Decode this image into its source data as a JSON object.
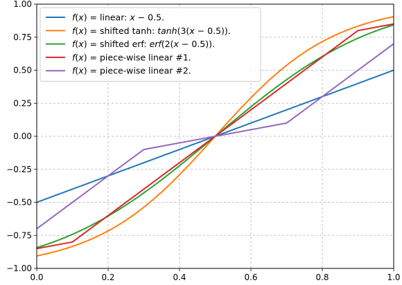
{
  "chart_data": {
    "type": "line",
    "xlim": [
      0.0,
      1.0
    ],
    "ylim": [
      -1.0,
      1.0
    ],
    "grid": true,
    "grid_style": "dashed",
    "legend_placement": "top-left",
    "x_ticks": [
      "0.0",
      "0.2",
      "0.4",
      "0.6",
      "0.8",
      "1.0"
    ],
    "y_ticks": [
      "1.00",
      "0.75",
      "0.50",
      "0.25",
      "0.00",
      "−0.25",
      "−0.50",
      "−0.75",
      "−1.00"
    ],
    "series": [
      {
        "name": "f(x) = linear: x − 0.5.",
        "legend": [
          {
            "t": "f",
            "i": true
          },
          {
            "t": "(",
            "i": false
          },
          {
            "t": "x",
            "i": true
          },
          {
            "t": ")  =  linear: ",
            "i": false
          },
          {
            "t": "x",
            "i": true
          },
          {
            "t": " − 0.5.",
            "i": false
          }
        ],
        "color": "#1f77b4",
        "kind": "func",
        "func": "linear"
      },
      {
        "name": "f(x) = shifted tanh: tanh(3(x − 0.5)).",
        "legend": [
          {
            "t": "f",
            "i": true
          },
          {
            "t": "(",
            "i": false
          },
          {
            "t": "x",
            "i": true
          },
          {
            "t": ")  =  shifted tanh: ",
            "i": false
          },
          {
            "t": "tanh",
            "i": true
          },
          {
            "t": "(3(",
            "i": false
          },
          {
            "t": "x",
            "i": true
          },
          {
            "t": " − 0.5)).",
            "i": false
          }
        ],
        "color": "#ff7f0e",
        "kind": "func",
        "func": "tanh3"
      },
      {
        "name": "f(x) = shifted erf: erf(2(x − 0.5)).",
        "legend": [
          {
            "t": "f",
            "i": true
          },
          {
            "t": "(",
            "i": false
          },
          {
            "t": "x",
            "i": true
          },
          {
            "t": ")  =  shifted erf: ",
            "i": false
          },
          {
            "t": "erf",
            "i": true
          },
          {
            "t": "(2(",
            "i": false
          },
          {
            "t": "x",
            "i": true
          },
          {
            "t": " − 0.5)).",
            "i": false
          }
        ],
        "color": "#2ca02c",
        "kind": "func",
        "func": "erf2"
      },
      {
        "name": "f(x) = piece-wise linear #1.",
        "legend": [
          {
            "t": "f",
            "i": true
          },
          {
            "t": "(",
            "i": false
          },
          {
            "t": "x",
            "i": true
          },
          {
            "t": ")  =  piece-wise linear #1.",
            "i": false
          }
        ],
        "color": "#d62728",
        "kind": "points",
        "x": [
          0.0,
          0.1,
          0.5,
          0.9,
          1.0
        ],
        "y": [
          -0.85,
          -0.8,
          0.0,
          0.8,
          0.85
        ]
      },
      {
        "name": "f(x) = piece-wise linear #2.",
        "legend": [
          {
            "t": "f",
            "i": true
          },
          {
            "t": "(",
            "i": false
          },
          {
            "t": "x",
            "i": true
          },
          {
            "t": ")  =  piece-wise linear #2.",
            "i": false
          }
        ],
        "color": "#9467bd",
        "kind": "points",
        "x": [
          0.0,
          0.3,
          0.5,
          0.7,
          1.0
        ],
        "y": [
          -0.7,
          -0.1,
          0.0,
          0.1,
          0.7
        ]
      }
    ]
  }
}
